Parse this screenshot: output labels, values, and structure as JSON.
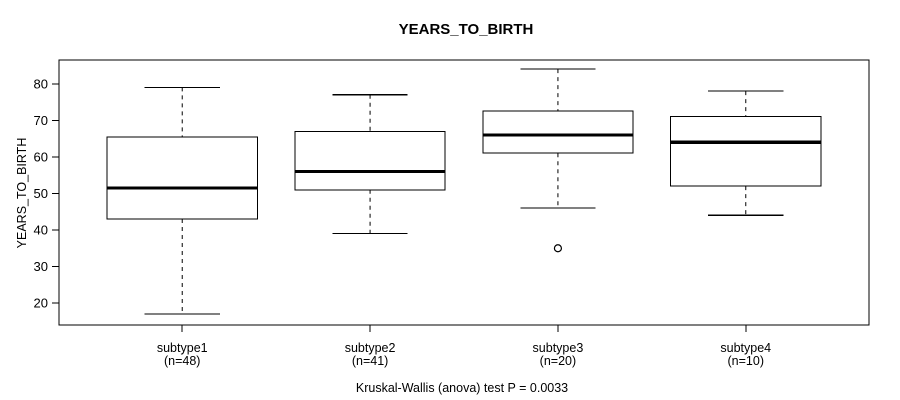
{
  "chart_data": {
    "type": "boxplot",
    "title": "YEARS_TO_BIRTH",
    "ylabel": "YEARS_TO_BIRTH",
    "xlabel": "",
    "caption": "Kruskal-Wallis (anova) test P = 0.0033",
    "yticks": [
      20,
      30,
      40,
      50,
      60,
      70,
      80
    ],
    "ylim": [
      14,
      86.5
    ],
    "grid": false,
    "legend": null,
    "groups": [
      {
        "label": "subtype1",
        "n_label": "(n=48)",
        "n": 48,
        "whisker_low": 17,
        "q1": 43,
        "median": 51.5,
        "q3": 65.5,
        "whisker_high": 79,
        "outliers": []
      },
      {
        "label": "subtype2",
        "n_label": "(n=41)",
        "n": 41,
        "whisker_low": 39,
        "q1": 51,
        "median": 56,
        "q3": 67,
        "whisker_high": 77,
        "outliers": []
      },
      {
        "label": "subtype3",
        "n_label": "(n=20)",
        "n": 20,
        "whisker_low": 46,
        "q1": 61,
        "median": 66,
        "q3": 72.5,
        "whisker_high": 84,
        "outliers": [
          35
        ]
      },
      {
        "label": "subtype4",
        "n_label": "(n=10)",
        "n": 10,
        "whisker_low": 44,
        "q1": 52,
        "median": 64,
        "q3": 71,
        "whisker_high": 78,
        "outliers": []
      }
    ],
    "colors": {
      "line": "#000000",
      "box_fill": "#ffffff",
      "background": "#ffffff"
    }
  }
}
